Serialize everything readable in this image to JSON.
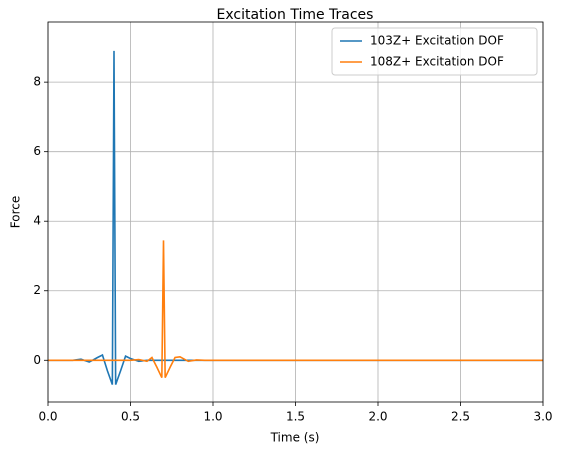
{
  "chart_data": {
    "type": "line",
    "title": "Excitation Time Traces",
    "xlabel": "Time (s)",
    "ylabel": "Force",
    "series": [
      {
        "name": "103Z+ Excitation DOF",
        "color": "#1f77b4",
        "x": [
          0,
          0.1,
          0.15,
          0.2,
          0.25,
          0.3,
          0.33,
          0.36,
          0.39,
          0.4,
          0.41,
          0.44,
          0.47,
          0.5,
          0.55,
          0.6,
          3.0
        ],
        "values": [
          0,
          0,
          0,
          0.03,
          -0.05,
          0.08,
          0.15,
          -0.3,
          -0.7,
          8.9,
          -0.7,
          -0.3,
          0.12,
          0.05,
          -0.03,
          0,
          0
        ]
      },
      {
        "name": "108Z+ Excitation DOF",
        "color": "#ff7f0e",
        "x": [
          0,
          0.5,
          0.55,
          0.6,
          0.63,
          0.66,
          0.69,
          0.7,
          0.71,
          0.74,
          0.77,
          0.8,
          0.85,
          0.9,
          0.95,
          3.0
        ],
        "values": [
          0,
          0,
          0.02,
          -0.03,
          0.08,
          -0.2,
          -0.5,
          3.45,
          -0.5,
          -0.2,
          0.08,
          0.1,
          -0.03,
          0.01,
          0,
          0
        ]
      }
    ],
    "xlim": [
      0,
      3.0
    ],
    "ylim": [
      -1.2,
      9.73
    ],
    "xticks": [
      {
        "value": 0,
        "label": "0.0"
      },
      0.5,
      {
        "value": 1,
        "label": "1.0"
      },
      1.5,
      {
        "value": 2,
        "label": "2.0"
      },
      2.5,
      {
        "value": 3,
        "label": "3.0"
      }
    ],
    "yticks": [
      0,
      2,
      4,
      6,
      8
    ],
    "grid": true,
    "legend": "upper right"
  }
}
